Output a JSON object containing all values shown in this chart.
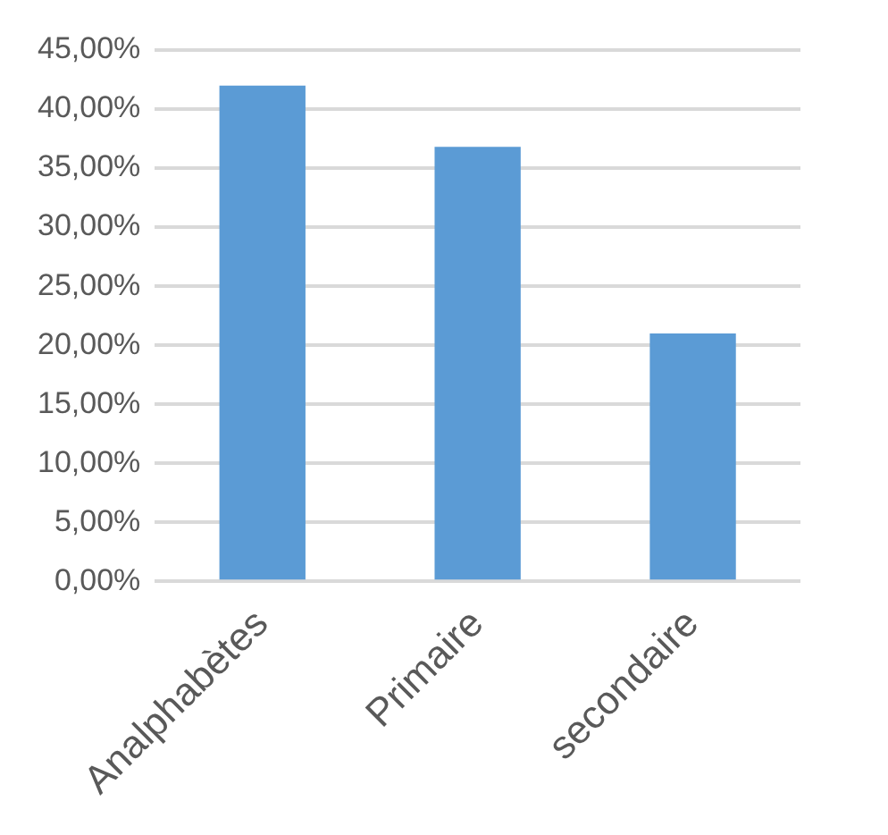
{
  "chart_data": {
    "type": "bar",
    "categories": [
      "Analphabètes",
      "Primaire",
      "secondaire"
    ],
    "values": [
      42,
      36.8,
      21
    ],
    "color": "#5b9bd5",
    "ylim": [
      0,
      45
    ],
    "yticks": [
      {
        "value": 0,
        "label": "0,00%"
      },
      {
        "value": 5,
        "label": "5,00%"
      },
      {
        "value": 10,
        "label": "10,00%"
      },
      {
        "value": 15,
        "label": "15,00%"
      },
      {
        "value": 20,
        "label": "20,00%"
      },
      {
        "value": 25,
        "label": "25,00%"
      },
      {
        "value": 30,
        "label": "30,00%"
      },
      {
        "value": 35,
        "label": "35,00%"
      },
      {
        "value": 40,
        "label": "40,00%"
      },
      {
        "value": 45,
        "label": "45,00%"
      }
    ],
    "grid": "y"
  }
}
